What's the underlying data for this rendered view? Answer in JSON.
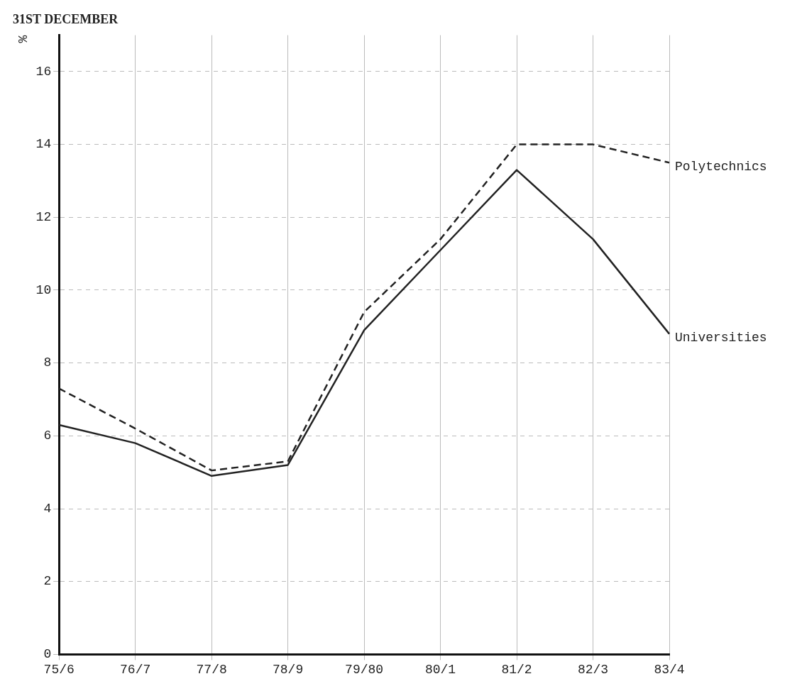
{
  "chart_data": {
    "type": "line",
    "title": "31ST DECEMBER",
    "ylabel": "%",
    "categories": [
      "75/6",
      "76/7",
      "77/8",
      "78/9",
      "79/80",
      "80/1",
      "81/2",
      "82/3",
      "83/4"
    ],
    "series": [
      {
        "name": "Polytechnics",
        "color": "#222222",
        "line_style": "dashed",
        "values": [
          7.3,
          6.2,
          5.05,
          5.3,
          9.4,
          11.4,
          14.0,
          14.0,
          13.5
        ]
      },
      {
        "name": "Universities",
        "color": "#222222",
        "line_style": "solid",
        "values": [
          6.3,
          5.8,
          4.9,
          5.2,
          8.9,
          11.1,
          13.3,
          11.4,
          8.8
        ]
      }
    ],
    "ylim": [
      0,
      17
    ],
    "yticks": [
      0,
      2,
      4,
      6,
      8,
      10,
      12,
      14,
      16
    ],
    "grid": true,
    "marker": "none"
  }
}
